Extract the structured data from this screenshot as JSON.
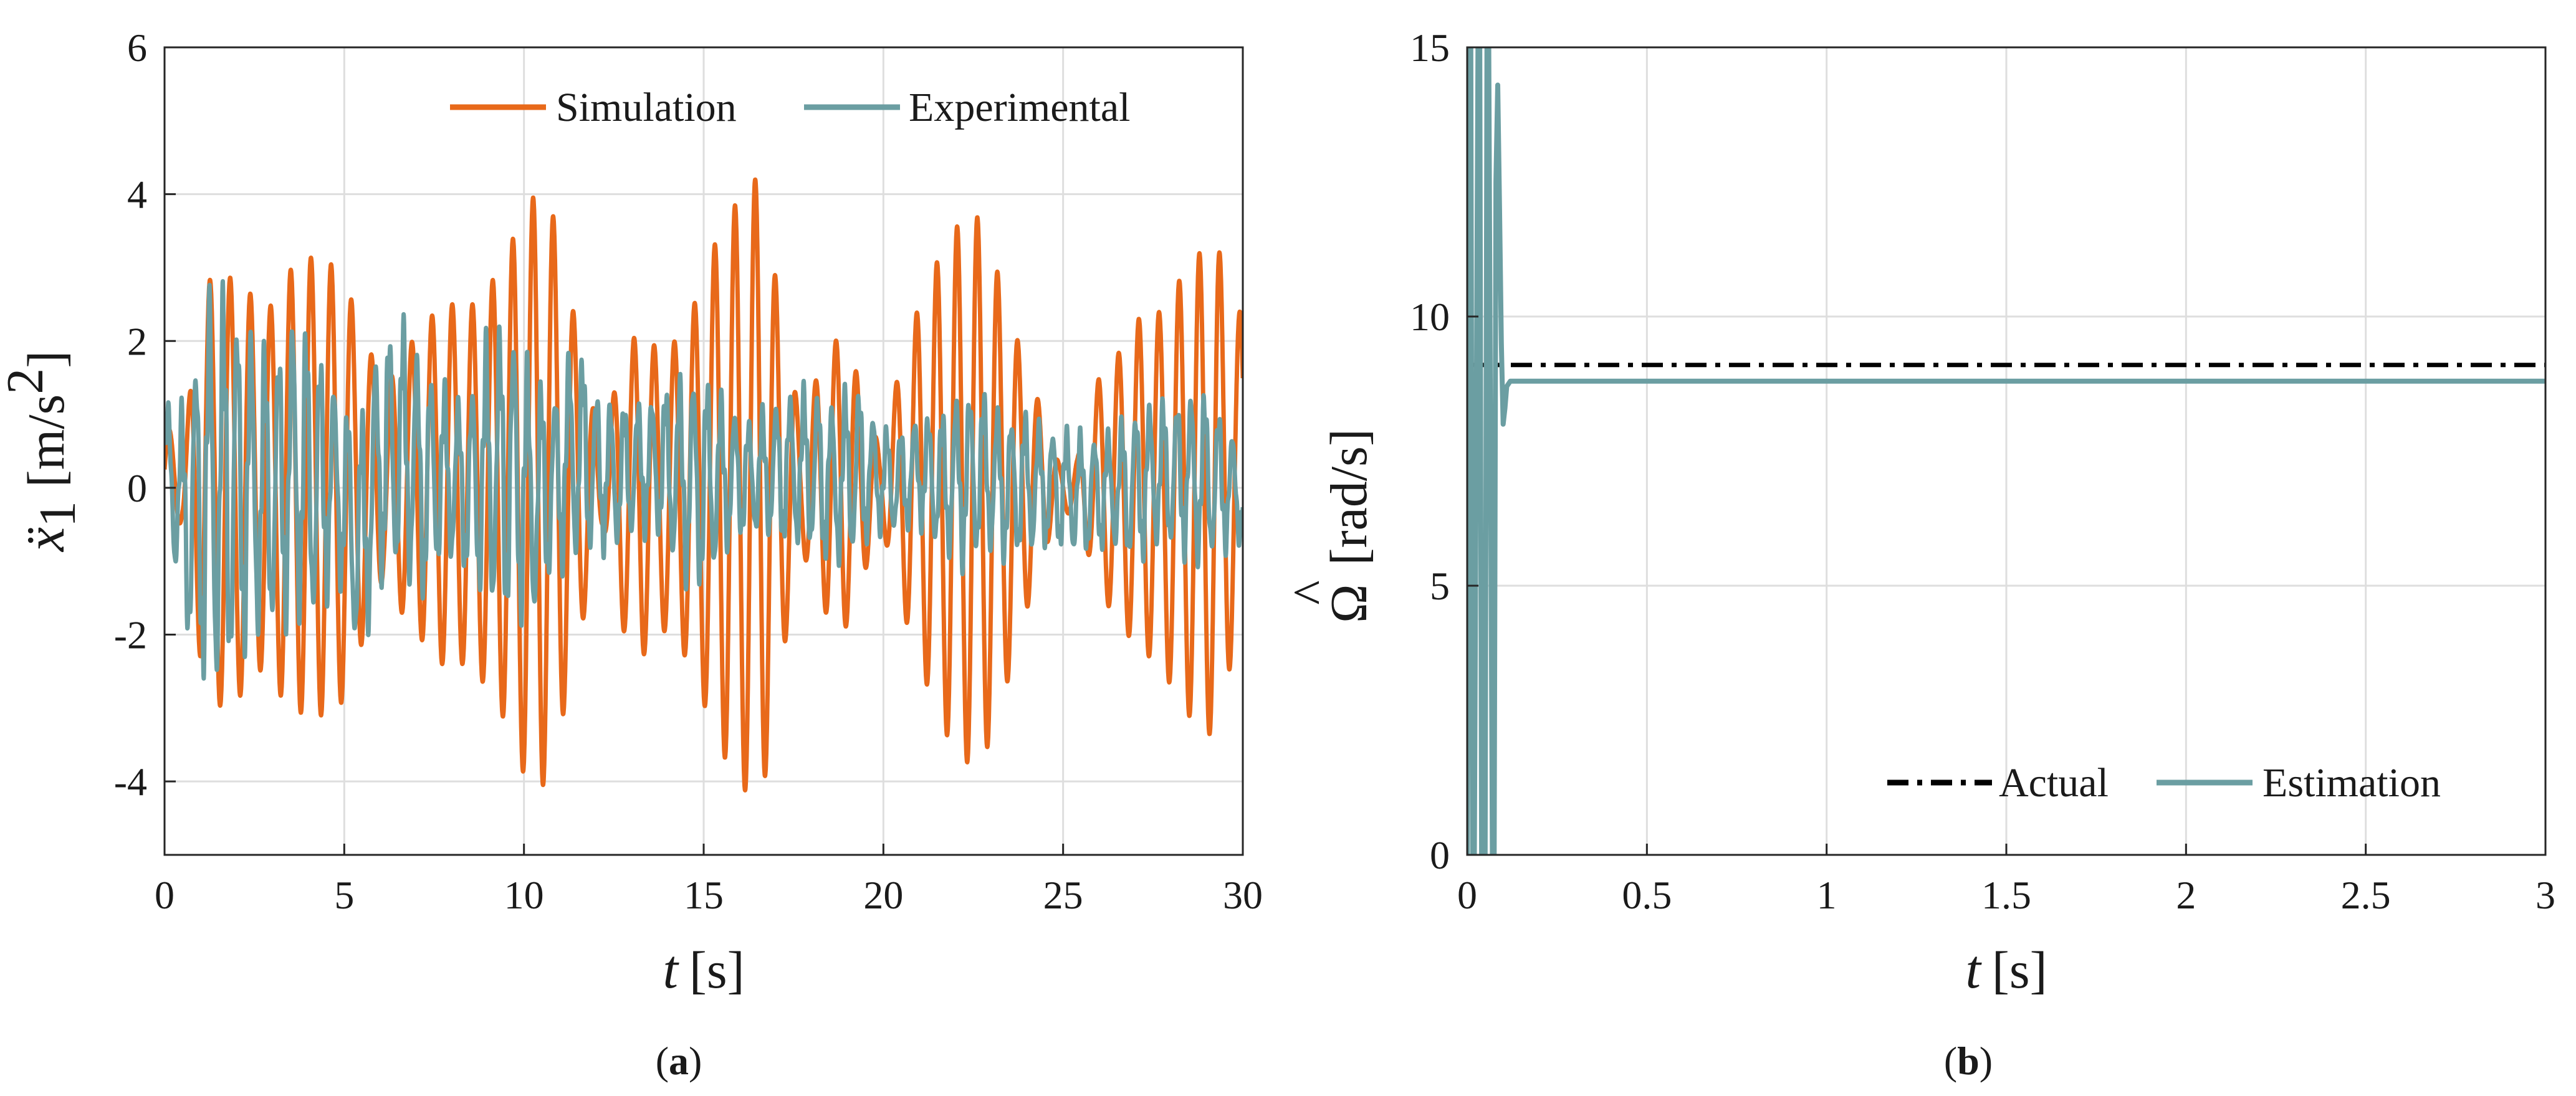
{
  "colors": {
    "simulation": "#E8691A",
    "experimental": "#6B9EA2",
    "actual": "#000000",
    "estimation": "#6B9EA2",
    "grid": "#dedede",
    "axis": "#262626"
  },
  "chart_data": [
    {
      "type": "line",
      "caption_prefix": "(",
      "caption_letter": "a",
      "caption_suffix": ")",
      "xlabel_symbol": "t",
      "xlabel_unit": "[s]",
      "ylabel_symbol": "ẍ",
      "ylabel_subscript": "1",
      "ylabel_unit": "[m/s",
      "ylabel_unit_sup": "2",
      "ylabel_unit_close": "]",
      "xlim": [
        0,
        30
      ],
      "ylim": [
        -5,
        6
      ],
      "xticks": [
        0,
        5,
        10,
        15,
        20,
        25,
        30
      ],
      "xtick_labels": [
        "0",
        "5",
        "10",
        "15",
        "20",
        "25",
        "30"
      ],
      "yticks": [
        -4,
        -2,
        0,
        2,
        4,
        6
      ],
      "ytick_labels": [
        "-4",
        "-2",
        "0",
        "2",
        "4",
        "6"
      ],
      "grid": true,
      "legend_position": "top-right",
      "series": [
        {
          "name": "Simulation",
          "color_key": "simulation",
          "envelope_t": [
            0,
            0.5,
            1.1,
            1.6,
            2.2,
            2.8,
            3.3,
            3.9,
            4.4,
            5.0,
            5.5,
            6.1,
            6.6,
            7.2,
            7.7,
            8.3,
            8.8,
            9.4,
            10.0,
            10.5,
            11.0,
            11.6,
            12.2,
            12.7,
            13.3,
            13.8,
            14.4,
            14.9,
            15.5,
            16.1,
            16.6,
            17.1,
            17.7,
            18.3,
            18.8,
            19.4,
            19.9,
            20.5,
            21.0,
            21.6,
            22.1,
            22.7,
            23.2,
            23.8,
            24.3,
            24.9,
            25.4,
            26.0,
            26.5,
            27.1,
            27.7,
            28.2,
            28.8,
            29.3,
            29.8
          ],
          "envelope_max": [
            0.9,
            0.5,
            2.8,
            2.9,
            2.8,
            2.3,
            2.9,
            3.1,
            3.2,
            2.8,
            2.2,
            1.3,
            1.8,
            2.2,
            2.5,
            2.5,
            2.5,
            3.1,
            3.7,
            4.2,
            3.4,
            1.8,
            0.5,
            1.8,
            2.2,
            1.8,
            2.1,
            2.7,
            3.6,
            4.0,
            4.3,
            2.5,
            0.9,
            1.7,
            2.1,
            1.4,
            0.5,
            1.7,
            2.5,
            3.2,
            3.6,
            3.7,
            2.9,
            1.9,
            1.2,
            0.3,
            0.4,
            1.5,
            1.8,
            2.3,
            2.4,
            2.8,
            3.2,
            3.3,
            2.4
          ],
          "envelope_min": [
            -0.4,
            -0.5,
            -2.7,
            -3.0,
            -2.8,
            -2.4,
            -2.9,
            -3.1,
            -3.1,
            -2.9,
            -2.1,
            -1.2,
            -1.7,
            -2.1,
            -2.4,
            -2.4,
            -2.6,
            -3.1,
            -3.9,
            -4.1,
            -3.3,
            -1.9,
            -0.5,
            -1.9,
            -2.3,
            -1.9,
            -2.2,
            -2.8,
            -3.6,
            -4.1,
            -4.3,
            -2.6,
            -0.8,
            -1.6,
            -2.1,
            -1.3,
            -0.4,
            -1.6,
            -2.4,
            -3.2,
            -3.7,
            -3.8,
            -3.1,
            -2.0,
            -1.1,
            -0.3,
            -0.4,
            -1.4,
            -1.8,
            -2.2,
            -2.4,
            -2.9,
            -3.3,
            -3.4,
            -2.0
          ]
        },
        {
          "name": "Experimental",
          "color_key": "experimental",
          "envelope_t": [
            0,
            0.6,
            1.2,
            1.8,
            2.4,
            3.0,
            3.6,
            4.2,
            4.8,
            5.4,
            6.0,
            6.6,
            7.2,
            7.8,
            8.4,
            9.0,
            9.6,
            10.2,
            10.8,
            11.4,
            12.0,
            12.6,
            13.2,
            13.8,
            14.4,
            15.0,
            15.6,
            16.2,
            16.8,
            17.4,
            18.0,
            18.6,
            19.2,
            19.8,
            20.4,
            21.0,
            21.6,
            22.2,
            22.8,
            23.4,
            24.0,
            24.6,
            25.2,
            25.8,
            26.4,
            27.0,
            27.6,
            28.2,
            28.8,
            29.4,
            30.0
          ],
          "envelope_max": [
            1.2,
            1.3,
            3.0,
            2.9,
            2.4,
            2.0,
            2.6,
            2.2,
            1.5,
            1.0,
            2.3,
            2.5,
            1.9,
            1.5,
            1.3,
            2.3,
            2.5,
            1.8,
            1.4,
            2.2,
            1.5,
            1.2,
            1.3,
            1.4,
            1.7,
            1.7,
            1.3,
            1.0,
            1.2,
            1.4,
            1.5,
            1.3,
            1.6,
            1.0,
            0.8,
            1.1,
            1.1,
            1.5,
            1.4,
            1.1,
            1.1,
            0.9,
            0.9,
            0.8,
            0.9,
            1.2,
            1.3,
            1.3,
            1.5,
            1.1,
            0.6
          ],
          "envelope_min": [
            -0.4,
            -2.2,
            -3.1,
            -2.9,
            -2.3,
            -2.2,
            -2.0,
            -2.1,
            -1.3,
            -2.6,
            -1.5,
            -1.4,
            -1.7,
            -1.1,
            -1.3,
            -1.9,
            -2.0,
            -2.1,
            -1.3,
            -1.2,
            -1.0,
            -0.9,
            -0.7,
            -0.8,
            -1.4,
            -1.6,
            -1.0,
            -0.7,
            -0.8,
            -0.9,
            -1.0,
            -1.2,
            -1.1,
            -0.7,
            -0.7,
            -0.6,
            -1.0,
            -1.2,
            -1.0,
            -1.1,
            -1.0,
            -0.9,
            -1.0,
            -1.0,
            -0.9,
            -1.2,
            -0.9,
            -1.0,
            -1.2,
            -1.0,
            -0.8
          ]
        }
      ]
    },
    {
      "type": "line",
      "caption_prefix": "(",
      "caption_letter": "b",
      "caption_suffix": ")",
      "xlabel_symbol": "t",
      "xlabel_unit": "[s]",
      "ylabel_symbol": "Ω",
      "ylabel_hat": "^",
      "ylabel_unit": "[rad/s]",
      "xlim": [
        0,
        3
      ],
      "ylim": [
        0,
        15
      ],
      "xticks": [
        0,
        0.5,
        1,
        1.5,
        2,
        2.5,
        3
      ],
      "xtick_labels": [
        "0",
        "0.5",
        "1",
        "1.5",
        "2",
        "2.5",
        "3"
      ],
      "yticks": [
        0,
        5,
        10,
        15
      ],
      "ytick_labels": [
        "0",
        "5",
        "10",
        "15"
      ],
      "grid": true,
      "legend_position": "bottom-right",
      "series": [
        {
          "name": "Actual",
          "color_key": "actual",
          "style": "dash-dot",
          "x": [
            0,
            3
          ],
          "y": [
            9.1,
            9.1
          ]
        },
        {
          "name": "Estimation",
          "color_key": "estimation",
          "style": "solid",
          "x": [
            0,
            0.005,
            0.01,
            0.015,
            0.02,
            0.03,
            0.035,
            0.04,
            0.05,
            0.055,
            0.06,
            0.07,
            0.075,
            0.08,
            0.085,
            0.09,
            0.095,
            0.1,
            0.105,
            0.11,
            0.12,
            0.15,
            0.2,
            3.0
          ],
          "y": [
            0,
            15,
            15,
            0,
            0,
            15,
            15,
            0,
            0,
            15,
            15,
            0,
            0,
            12.5,
            14.3,
            12.0,
            9.5,
            8.0,
            8.3,
            8.7,
            8.8,
            8.8,
            8.8,
            8.8
          ]
        }
      ]
    }
  ]
}
